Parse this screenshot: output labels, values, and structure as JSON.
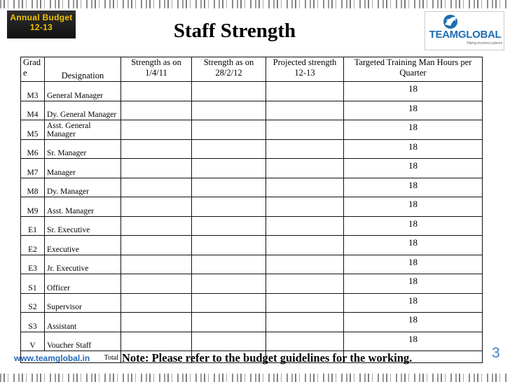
{
  "header": {
    "badge_line1": "Annual  Budget",
    "badge_line2": "12-13",
    "title": "Staff Strength",
    "logo_name": "TEAMGLOBAL",
    "logo_tagline": "Taking business places"
  },
  "table": {
    "headers": {
      "grade": "Grad e",
      "designation": "Designation",
      "strength_1": "Strength as on 1/4/11",
      "strength_2": "Strength as on 28/2/12",
      "projected": "Projected strength 12-13",
      "training": "Targeted Training  Man Hours per Quarter"
    },
    "rows": [
      {
        "grade": "M3",
        "designation": "General Manager",
        "hours": "18"
      },
      {
        "grade": "M4",
        "designation": "Dy. General Manager",
        "hours": "18"
      },
      {
        "grade": "M5",
        "designation": "Asst. General Manager",
        "hours": "18"
      },
      {
        "grade": "M6",
        "designation": "Sr. Manager",
        "hours": "18"
      },
      {
        "grade": "M7",
        "designation": "Manager",
        "hours": "18"
      },
      {
        "grade": "M8",
        "designation": "Dy. Manager",
        "hours": "18"
      },
      {
        "grade": "M9",
        "designation": "Asst. Manager",
        "hours": "18"
      },
      {
        "grade": "E1",
        "designation": "Sr. Executive",
        "hours": "18"
      },
      {
        "grade": "E2",
        "designation": "Executive",
        "hours": "18"
      },
      {
        "grade": "E3",
        "designation": "Jr. Executive",
        "hours": "18"
      },
      {
        "grade": "S1",
        "designation": "Officer",
        "hours": "18"
      },
      {
        "grade": "S2",
        "designation": "Supervisor",
        "hours": "18"
      },
      {
        "grade": "S3",
        "designation": "Assistant",
        "hours": "18"
      },
      {
        "grade": "V",
        "designation": "Voucher Staff",
        "hours": "18"
      }
    ],
    "total_label": "Total"
  },
  "footer": {
    "url": "www.teamglobal.in",
    "note": "Note: Please refer to the budget guidelines for the working.",
    "page_number": "3"
  },
  "colors": {
    "badge_text": "#f2c300",
    "logo_blue": "#1e6eb0",
    "url_blue": "#2468b8",
    "page_number": "#3f7fc0"
  }
}
